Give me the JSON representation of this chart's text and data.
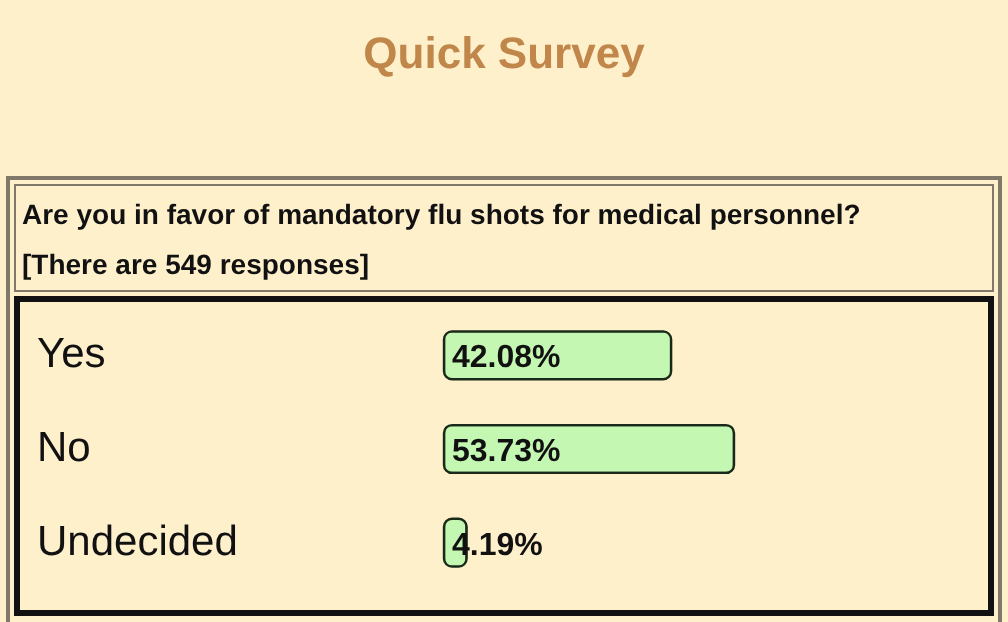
{
  "chart_data": {
    "type": "bar",
    "orientation": "horizontal",
    "title": "Quick Survey",
    "subtitle": "Are you in favor of mandatory flu shots for medical personnel?",
    "annotations": [
      "[There are 549 responses]"
    ],
    "categories": [
      "Yes",
      "No",
      "Undecided"
    ],
    "values": [
      42.08,
      53.73,
      4.19
    ],
    "color": "#c4f7b2",
    "value_labels": [
      "42.08%",
      "53.73%",
      "4.19%"
    ]
  }
}
